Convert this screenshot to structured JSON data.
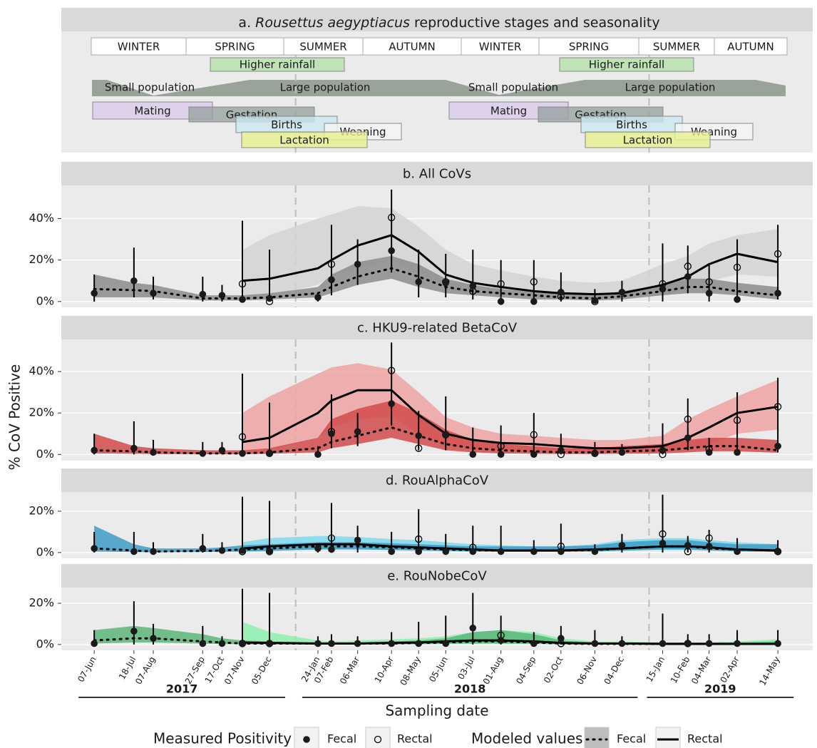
{
  "panel_a": {
    "title": {
      "prefix": "a.",
      "species": "Rousettus aegyptiacus",
      "rest": "reproductive stages and seasonality"
    },
    "seasons": [
      "WINTER",
      "SPRING",
      "SUMMER",
      "AUTUMN",
      "WINTER",
      "SPRING",
      "SUMMER",
      "AUTUMN"
    ],
    "rainfall": [
      "Higher rainfall",
      "Higher rainfall"
    ],
    "population": [
      "Small population",
      "Large population",
      "Small population",
      "Large population"
    ],
    "stages": [
      "Mating",
      "Gestation",
      "Births",
      "Weaning",
      "Lactation",
      "Mating",
      "Gestation",
      "Births",
      "Weaning",
      "Lactation"
    ]
  },
  "axes": {
    "x": [
      "2017-06-07",
      "2017-07-18",
      "2017-08-07",
      "2017-09-27",
      "2017-10-17",
      "2017-11-07",
      "2017-12-05",
      "2018-01-24",
      "2018-02-07",
      "2018-03-06",
      "2018-04-10",
      "2018-05-08",
      "2018-06-05",
      "2018-07-03",
      "2018-08-01",
      "2018-09-04",
      "2018-10-02",
      "2018-11-06",
      "2018-12-04",
      "2019-01-15",
      "2019-02-10",
      "2019-03-04",
      "2019-04-02",
      "2019-05-14"
    ],
    "xlim": [
      "2017-05-04",
      "2019-06-19"
    ],
    "xticks": [
      {
        "value": "2017-06-07",
        "label": "07-Jun"
      },
      {
        "value": "2017-07-18",
        "label": "18-Jul"
      },
      {
        "value": "2017-08-07",
        "label": "07-Aug"
      },
      {
        "value": "2017-09-27",
        "label": "27-Sep"
      },
      {
        "value": "2017-10-17",
        "label": "17-Oct"
      },
      {
        "value": "2017-11-07",
        "label": "07-Nov"
      },
      {
        "value": "2017-12-05",
        "label": "05-Dec"
      },
      {
        "value": "2018-01-24",
        "label": "24-Jan"
      },
      {
        "value": "2018-02-07",
        "label": "07-Feb"
      },
      {
        "value": "2018-03-06",
        "label": "06-Mar"
      },
      {
        "value": "2018-04-10",
        "label": "10-Apr"
      },
      {
        "value": "2018-05-08",
        "label": "08-May"
      },
      {
        "value": "2018-06-05",
        "label": "05-Jun"
      },
      {
        "value": "2018-07-03",
        "label": "03-Jul"
      },
      {
        "value": "2018-08-01",
        "label": "01-Aug"
      },
      {
        "value": "2018-09-04",
        "label": "04-Sep"
      },
      {
        "value": "2018-10-02",
        "label": "02-Oct"
      },
      {
        "value": "2018-11-06",
        "label": "06-Nov"
      },
      {
        "value": "2018-12-04",
        "label": "04-Dec"
      },
      {
        "value": "2019-01-15",
        "label": "15-Jan"
      },
      {
        "value": "2019-02-10",
        "label": "10-Feb"
      },
      {
        "value": "2019-03-04",
        "label": "04-Mar"
      },
      {
        "value": "2019-04-02",
        "label": "02-Apr"
      },
      {
        "value": "2019-05-14",
        "label": "14-May"
      }
    ],
    "years": [
      "2017",
      "2018",
      "2019"
    ],
    "x_label": "Sampling date",
    "y_label": "% CoV Positive"
  },
  "legend": {
    "measured_title": "Measured Positivity",
    "measured": [
      "Fecal",
      "Rectal"
    ],
    "modeled_title": "Modeled values",
    "modeled": [
      "Fecal",
      "Rectal"
    ]
  },
  "chart_data": [
    {
      "type": "band-line",
      "title": "b. All CoVs",
      "ylim": [
        -2.8,
        56
      ],
      "yticks": [
        {
          "value": 0,
          "label": "0%"
        },
        {
          "value": 20,
          "label": "20%"
        },
        {
          "value": 40,
          "label": "40%"
        }
      ],
      "fecal": [
        4,
        10,
        4,
        3.5,
        3,
        1,
        1.5,
        2,
        10.5,
        18,
        24.5,
        9.5,
        9,
        7.5,
        0,
        0,
        4.5,
        0.5,
        4.5,
        6,
        12,
        4,
        1,
        4
      ],
      "rectal": [
        null,
        null,
        null,
        null,
        null,
        8.5,
        0,
        null,
        18,
        null,
        40.5,
        null,
        9.5,
        5,
        8.5,
        9.5,
        2.5,
        0,
        null,
        8.5,
        17,
        9.5,
        16.5,
        23
      ],
      "ci_low": [
        0,
        2,
        1,
        0,
        0,
        0,
        0,
        0,
        3,
        8,
        14,
        2,
        2,
        1,
        0,
        0,
        0,
        0,
        0,
        0,
        4,
        0,
        0,
        1
      ],
      "ci_high": [
        13,
        26,
        12,
        12,
        8,
        39,
        25,
        4,
        37,
        30,
        54,
        25,
        23,
        25,
        20,
        20,
        14,
        6,
        10,
        28,
        27,
        18,
        30,
        37
      ],
      "model_fecal": {
        "color": "#8c8c8c",
        "values": [
          6,
          5.5,
          5,
          1.5,
          1.5,
          1.5,
          2,
          4,
          7,
          12,
          16,
          12,
          7,
          5,
          4,
          3,
          2,
          1.5,
          2.5,
          5,
          7,
          7,
          5,
          3
        ],
        "low": [
          2,
          2,
          2,
          0.5,
          0.5,
          0.5,
          1,
          2,
          4,
          8,
          11,
          7,
          4,
          3,
          2,
          1,
          1,
          0.5,
          1,
          3,
          4,
          4,
          3,
          1
        ],
        "high": [
          13,
          9,
          8,
          3,
          3,
          3,
          4,
          7,
          13,
          19,
          22,
          18,
          11,
          8,
          6,
          5,
          4,
          3,
          5,
          8,
          11,
          11,
          9,
          7
        ]
      },
      "model_rectal": {
        "color": "#d3d3d3",
        "values": [
          null,
          null,
          null,
          null,
          null,
          10,
          11,
          16,
          20,
          27,
          32,
          24,
          13,
          9,
          7,
          5,
          4,
          3.5,
          4,
          8,
          12,
          18,
          23,
          19
        ],
        "low": [
          null,
          null,
          null,
          null,
          null,
          2,
          3,
          8,
          12,
          16,
          20,
          13,
          6,
          4,
          3,
          2,
          1.5,
          1,
          2,
          3,
          6,
          10,
          13,
          12
        ],
        "high": [
          null,
          null,
          null,
          null,
          null,
          25,
          32,
          40,
          42,
          46,
          45,
          36,
          25,
          18,
          15,
          12,
          10,
          9,
          10,
          18,
          22,
          28,
          32,
          35
        ]
      }
    },
    {
      "type": "band-line",
      "title": "c. HKU9-related BetaCoV",
      "ylim": [
        -3,
        55.5
      ],
      "yticks": [
        {
          "value": 0,
          "label": "0%"
        },
        {
          "value": 20,
          "label": "20%"
        },
        {
          "value": 40,
          "label": "40%"
        }
      ],
      "fecal": [
        2,
        3,
        1,
        0.5,
        2,
        0.5,
        0.5,
        0,
        10,
        11,
        24.5,
        9,
        9.5,
        0,
        0,
        0,
        2,
        0.5,
        1,
        2,
        8,
        1,
        1,
        4
      ],
      "rectal": [
        null,
        null,
        null,
        null,
        null,
        8.5,
        0.5,
        null,
        11,
        null,
        40.5,
        3,
        9.5,
        null,
        4,
        9.5,
        0,
        0.5,
        null,
        0,
        17,
        2.5,
        16.5,
        23
      ],
      "ci_low": [
        0,
        0,
        0,
        0,
        0,
        0,
        0,
        0,
        3,
        4,
        14,
        2,
        2,
        0,
        0,
        0,
        0,
        0,
        0,
        0,
        2,
        0,
        0,
        1
      ],
      "ci_high": [
        10,
        16,
        7,
        6,
        6,
        39,
        25,
        4,
        29,
        20,
        54,
        21,
        28,
        13,
        14,
        20,
        10,
        6,
        5,
        15,
        27,
        8,
        30,
        37
      ],
      "model_fecal": {
        "color": "#d14b4b",
        "values": [
          2,
          1.5,
          1,
          0.5,
          0.5,
          0.5,
          1,
          3,
          6,
          9,
          13,
          9,
          5,
          3,
          2,
          1.5,
          1,
          1,
          1.5,
          2,
          3,
          4,
          4,
          2
        ],
        "low": [
          0.5,
          0.3,
          0.2,
          0.1,
          0.1,
          0.1,
          0.3,
          1,
          3,
          5,
          8,
          5,
          2,
          1,
          0.5,
          0.3,
          0.2,
          0.2,
          0.3,
          0.5,
          1,
          1.5,
          1.5,
          0.8
        ],
        "high": [
          10,
          4,
          3,
          2,
          2,
          2,
          3,
          8,
          17,
          22,
          26,
          20,
          12,
          7,
          5,
          4,
          3,
          3,
          4,
          5,
          7,
          8,
          8,
          7
        ]
      },
      "model_rectal": {
        "color": "#f0a3a3",
        "values": [
          null,
          null,
          null,
          null,
          null,
          6,
          8,
          20,
          26,
          31,
          31,
          19,
          10,
          7,
          5.5,
          5,
          4,
          3,
          3,
          4,
          8,
          13,
          20,
          23
        ],
        "low": [
          null,
          null,
          null,
          null,
          null,
          1,
          2,
          8,
          13,
          17,
          18,
          10,
          4,
          2.5,
          2,
          1.5,
          1,
          0.8,
          0.8,
          1,
          3,
          5,
          10,
          12
        ],
        "high": [
          null,
          null,
          null,
          null,
          null,
          20,
          28,
          39,
          42,
          44,
          41,
          30,
          18,
          13,
          10,
          9,
          8,
          7,
          7,
          9,
          17,
          22,
          28,
          36
        ]
      }
    },
    {
      "type": "band-line",
      "title": "d. RouAlphaCoV",
      "ylim": [
        -2.8,
        29.3
      ],
      "yticks": [
        {
          "value": 0,
          "label": "0%"
        },
        {
          "value": 20,
          "label": "20%"
        }
      ],
      "fecal": [
        2,
        0.5,
        0.5,
        2,
        1,
        1,
        0.5,
        2,
        1.5,
        6,
        0.5,
        0.5,
        0.5,
        0.5,
        0.5,
        0.5,
        0.5,
        0.5,
        3.5,
        4.5,
        3.5,
        3,
        0.5,
        0.5
      ],
      "rectal": [
        null,
        null,
        null,
        null,
        null,
        0.5,
        0.5,
        null,
        7,
        null,
        null,
        6.5,
        null,
        2.5,
        null,
        null,
        3,
        null,
        null,
        9,
        0.5,
        7,
        null,
        0.5
      ],
      "ci_low": [
        0,
        0,
        0,
        0,
        0,
        0,
        0,
        0,
        0,
        0,
        0,
        0,
        0,
        0,
        0,
        0,
        0,
        0,
        0,
        0,
        0,
        0,
        0,
        0
      ],
      "ci_high": [
        10,
        10,
        5,
        9,
        5,
        27,
        25,
        4,
        24,
        13,
        10,
        21,
        9,
        13,
        13,
        6,
        14,
        4,
        9,
        28,
        8,
        11,
        7,
        6
      ],
      "model_fecal": {
        "color": "#3d9cc6",
        "values": [
          2,
          1,
          0.5,
          0.8,
          1,
          1.5,
          2,
          3,
          3,
          3,
          2.5,
          2,
          1.5,
          1.2,
          1,
          1,
          1,
          1.2,
          2,
          3,
          3,
          2,
          1.5,
          1
        ],
        "low": [
          0.5,
          0.2,
          0.1,
          0.2,
          0.3,
          0.5,
          0.8,
          1.5,
          1.5,
          1.5,
          1.2,
          1,
          0.7,
          0.5,
          0.4,
          0.4,
          0.4,
          0.5,
          0.9,
          1.5,
          1.5,
          1,
          0.6,
          0.3
        ],
        "high": [
          13,
          4,
          2,
          2,
          2.5,
          3.5,
          4,
          5,
          5,
          5,
          4.5,
          4,
          3.5,
          3,
          3,
          3,
          3,
          3.5,
          5,
          6,
          6,
          5,
          4,
          4
        ]
      },
      "model_rectal": {
        "color": "#7fd9ef",
        "values": [
          null,
          null,
          null,
          null,
          null,
          2,
          3,
          4,
          4,
          4,
          3,
          2.5,
          2,
          1.5,
          1,
          1,
          1,
          1.5,
          2,
          3,
          3,
          2.5,
          1.5,
          1
        ],
        "low": [
          null,
          null,
          null,
          null,
          null,
          0.3,
          0.8,
          1.5,
          1.5,
          1.5,
          1.2,
          1,
          0.7,
          0.5,
          0.3,
          0.3,
          0.3,
          0.5,
          0.8,
          1.2,
          1.2,
          1,
          0.5,
          0.3
        ],
        "high": [
          null,
          null,
          null,
          null,
          null,
          5,
          7,
          8,
          8,
          7.5,
          6.5,
          6,
          5,
          4,
          3.5,
          3,
          3,
          4,
          6,
          7,
          7,
          6,
          5,
          4
        ]
      }
    },
    {
      "type": "band-line",
      "title": "e. RouNobeCoV",
      "ylim": [
        -2.8,
        27.6
      ],
      "yticks": [
        {
          "value": 0,
          "label": "0%"
        },
        {
          "value": 20,
          "label": "20%"
        }
      ],
      "fecal": [
        0.5,
        6.5,
        3,
        0.5,
        0.5,
        0.5,
        0.5,
        0.5,
        0.5,
        0.5,
        0.5,
        0.5,
        0.5,
        8,
        2,
        0.5,
        3,
        0.5,
        0.5,
        0.5,
        0.5,
        0.5,
        0.5,
        0.5
      ],
      "rectal": [
        null,
        null,
        null,
        null,
        null,
        0.5,
        0.5,
        null,
        null,
        null,
        null,
        null,
        null,
        null,
        4.5,
        null,
        0.5,
        null,
        null,
        null,
        0.5,
        null,
        null,
        null
      ],
      "ci_low": [
        0,
        0,
        0,
        0,
        0,
        0,
        0,
        0,
        0,
        0,
        0,
        0,
        0,
        0,
        0,
        0,
        0,
        0,
        0,
        0,
        0,
        0,
        0,
        0
      ],
      "ci_high": [
        7,
        21,
        10,
        9,
        4,
        27,
        25,
        4,
        5,
        4,
        6,
        11,
        14,
        25,
        14,
        6,
        9,
        7,
        4,
        15,
        5,
        5,
        7,
        7
      ],
      "model_fecal": {
        "color": "#5cb67a",
        "values": [
          2,
          3,
          3,
          1.5,
          1,
          0.5,
          0.5,
          0.5,
          0.5,
          0.5,
          0.5,
          0.8,
          1,
          1.5,
          1.5,
          1,
          0.5,
          0.3,
          0.3,
          0.3,
          0.3,
          0.3,
          0.3,
          0.3
        ],
        "low": [
          0.5,
          1,
          1,
          0.5,
          0.2,
          0.1,
          0.1,
          0.1,
          0.1,
          0.1,
          0.1,
          0.2,
          0.3,
          0.5,
          0.5,
          0.3,
          0.1,
          0,
          0,
          0,
          0,
          0,
          0,
          0
        ],
        "high": [
          7,
          9,
          8,
          5,
          3,
          2,
          1.5,
          1,
          1,
          1,
          1.5,
          2,
          3,
          6,
          7,
          5,
          2,
          1,
          1,
          1,
          1,
          1,
          1,
          1.5
        ]
      },
      "model_rectal": {
        "color": "#8ef0ad",
        "values": [
          null,
          null,
          null,
          null,
          null,
          1,
          0.8,
          0.5,
          0.5,
          0.5,
          0.8,
          1,
          1.5,
          2,
          2,
          1.5,
          0.8,
          0.5,
          0.5,
          0.3,
          0.3,
          0.3,
          0.3,
          0.3
        ],
        "low": [
          null,
          null,
          null,
          null,
          null,
          0,
          0,
          0,
          0,
          0,
          0,
          0,
          0.2,
          0.3,
          0.3,
          0.2,
          0,
          0,
          0,
          0,
          0,
          0,
          0,
          0
        ],
        "high": [
          null,
          null,
          null,
          null,
          null,
          11,
          6,
          2,
          1.5,
          2,
          2.5,
          3,
          4,
          6,
          7,
          6,
          3,
          1.5,
          1.5,
          1,
          1,
          1,
          1.5,
          2.5
        ]
      }
    }
  ]
}
